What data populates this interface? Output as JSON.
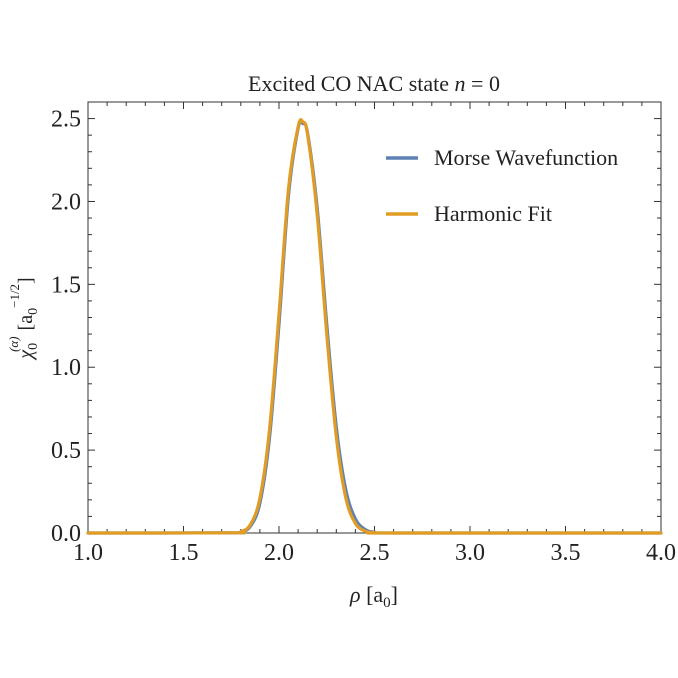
{
  "chart_data": {
    "type": "line",
    "title_text": "Excited CO NAC state ",
    "title_var": "n",
    "title_eq": " = 0",
    "xlabel_var": "ρ",
    "xlabel_unit_open": " [a",
    "xlabel_unit_sub": "0",
    "xlabel_unit_close": "]",
    "ylabel_symbol": "χ",
    "ylabel_sub": "0",
    "ylabel_sup": "(α)",
    "ylabel_unit_open": "[a",
    "ylabel_unit_sub": "0",
    "ylabel_unit_sup": "−1/2",
    "ylabel_unit_close": "]",
    "xlim": [
      1.0,
      4.0
    ],
    "ylim": [
      0.0,
      2.6
    ],
    "xticks": [
      1.0,
      1.5,
      2.0,
      2.5,
      3.0,
      3.5,
      4.0
    ],
    "xtick_labels": [
      "1.0",
      "1.5",
      "2.0",
      "2.5",
      "3.0",
      "3.5",
      "4.0"
    ],
    "yticks": [
      0.0,
      0.5,
      1.0,
      1.5,
      2.0,
      2.5
    ],
    "ytick_labels": [
      "0.0",
      "0.5",
      "1.0",
      "1.5",
      "2.0",
      "2.5"
    ],
    "legend_position": "top-right",
    "series": [
      {
        "name": "Morse Wavefunction",
        "color": "#5e81b5",
        "x": [
          1.0,
          1.75,
          1.8,
          1.85,
          1.9,
          1.95,
          2.0,
          2.05,
          2.1,
          2.125,
          2.15,
          2.2,
          2.25,
          2.3,
          2.35,
          2.4,
          2.45,
          2.5,
          2.6,
          4.0
        ],
        "y": [
          0.0,
          0.001,
          0.006,
          0.04,
          0.18,
          0.57,
          1.26,
          2.04,
          2.44,
          2.47,
          2.41,
          1.96,
          1.26,
          0.64,
          0.26,
          0.085,
          0.022,
          0.005,
          0.0,
          0.0
        ]
      },
      {
        "name": "Harmonic Fit",
        "color": "#e19c24",
        "x": [
          1.0,
          1.75,
          1.8,
          1.85,
          1.9,
          1.95,
          2.0,
          2.05,
          2.1,
          2.125,
          2.15,
          2.2,
          2.25,
          2.3,
          2.35,
          2.4,
          2.45,
          2.5,
          2.6,
          4.0
        ],
        "y": [
          0.0,
          0.001,
          0.008,
          0.05,
          0.21,
          0.62,
          1.32,
          2.08,
          2.45,
          2.48,
          2.4,
          1.92,
          1.2,
          0.58,
          0.21,
          0.058,
          0.012,
          0.002,
          0.0,
          0.0
        ]
      }
    ]
  }
}
